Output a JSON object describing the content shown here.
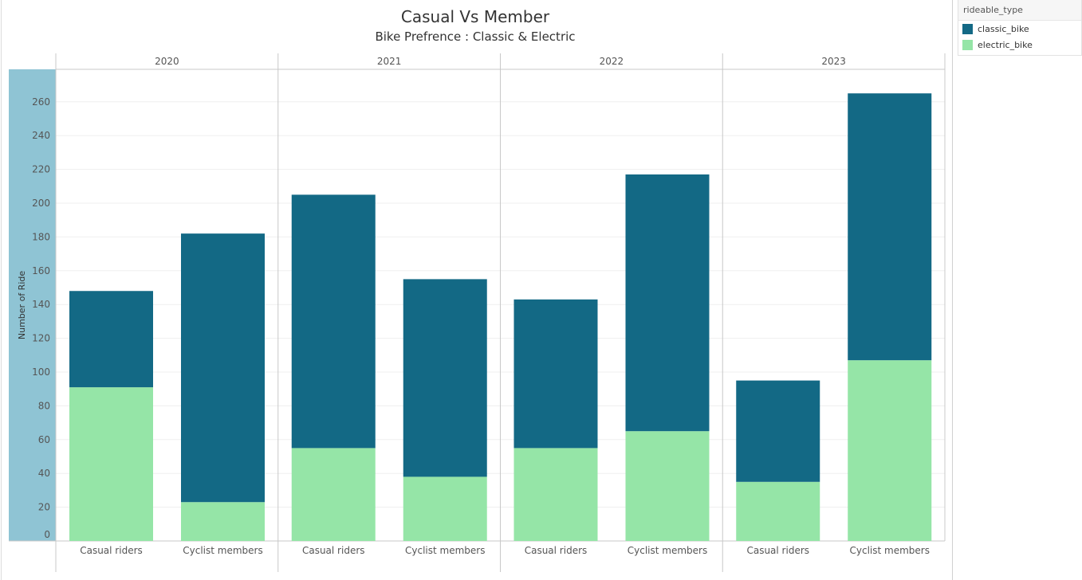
{
  "title": "Casual Vs Member",
  "subtitle": "Bike Prefrence : Classic & Electric",
  "legend": {
    "title": "rideable_type",
    "items": [
      {
        "label": "classic_bike",
        "color": "#136985"
      },
      {
        "label": "electric_bike",
        "color": "#95e5a7"
      }
    ]
  },
  "chart_data": {
    "type": "bar",
    "stacked": true,
    "title": "Casual Vs Member",
    "subtitle": "Bike Prefrence : Classic & Electric",
    "ylabel": "Number of Ride",
    "ylim": [
      0,
      280
    ],
    "yticks": [
      0,
      20,
      40,
      60,
      80,
      100,
      120,
      140,
      160,
      180,
      200,
      220,
      240,
      260
    ],
    "grid": true,
    "legend_position": "top-right",
    "panels": [
      "2020",
      "2021",
      "2022",
      "2023"
    ],
    "categories": [
      "Casual riders",
      "Cyclist members"
    ],
    "series": [
      {
        "name": "electric_bike",
        "color": "#95e5a7",
        "values": [
          [
            91,
            23
          ],
          [
            55,
            38
          ],
          [
            55,
            65
          ],
          [
            35,
            107
          ]
        ]
      },
      {
        "name": "classic_bike",
        "color": "#136985",
        "values": [
          [
            57,
            159
          ],
          [
            150,
            117
          ],
          [
            88,
            152
          ],
          [
            60,
            158
          ]
        ]
      }
    ],
    "totals": [
      [
        148,
        182
      ],
      [
        205,
        155
      ],
      [
        143,
        217
      ],
      [
        95,
        265
      ]
    ]
  }
}
